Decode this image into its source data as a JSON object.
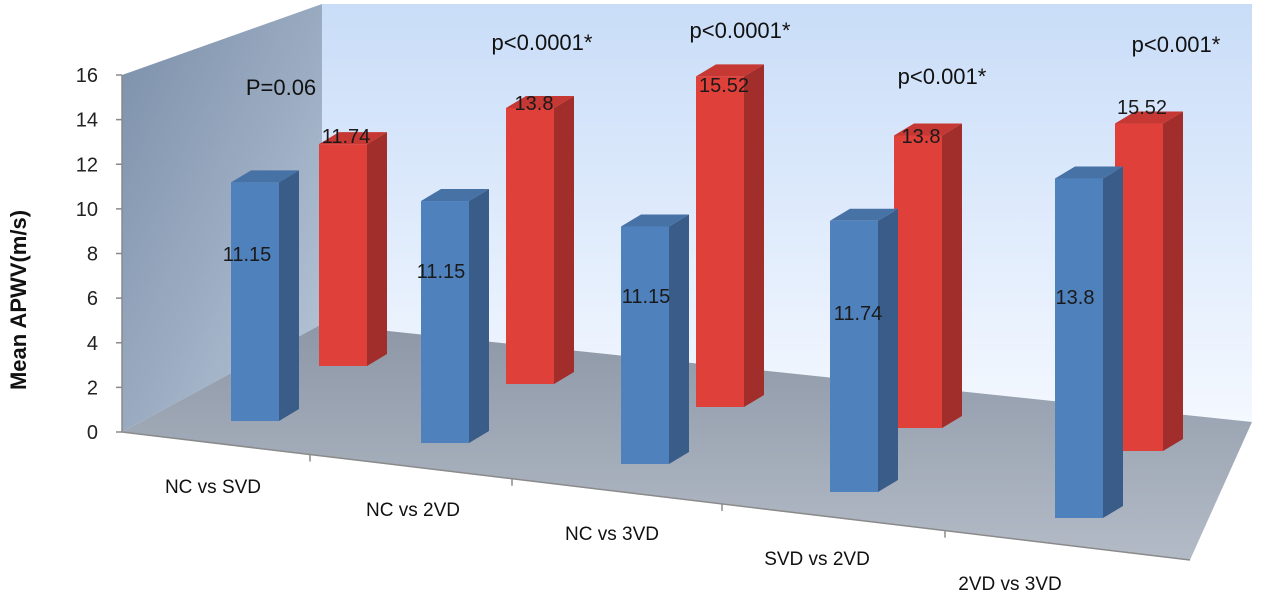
{
  "chart_data": {
    "type": "bar",
    "title": "",
    "ylabel": "Mean APWV(m/s)",
    "xlabel": "",
    "ylim": [
      0,
      16
    ],
    "yticks": [
      0,
      2,
      4,
      6,
      8,
      10,
      12,
      14,
      16
    ],
    "categories": [
      "NC vs SVD",
      "NC vs 2VD",
      "NC vs 3VD",
      "SVD vs 2VD",
      "2VD vs 3VD"
    ],
    "series": [
      {
        "values": [
          11.15,
          11.15,
          11.15,
          11.74,
          13.8
        ],
        "color": "#4F81BD"
      },
      {
        "values": [
          11.74,
          13.8,
          15.52,
          13.8,
          15.52
        ],
        "color": "#E0403A"
      }
    ],
    "data_labels": [
      [
        "11.15",
        "11.15",
        "11.15",
        "11.74",
        "13.8"
      ],
      [
        "11.74",
        "13.8",
        "15.52",
        "13.8",
        "15.52"
      ]
    ],
    "annotations": [
      "P=0.06",
      "p<0.0001*",
      "p<0.0001*",
      "p<0.001*",
      "p<0.001*"
    ],
    "grid": false,
    "style": "3d-columns",
    "colors": {
      "wall_back_top": "#cfe2fb",
      "wall_back_bottom": "#f2f7ff",
      "wall_side": "#8fa3bd",
      "floor": "#9aa3b1"
    }
  }
}
